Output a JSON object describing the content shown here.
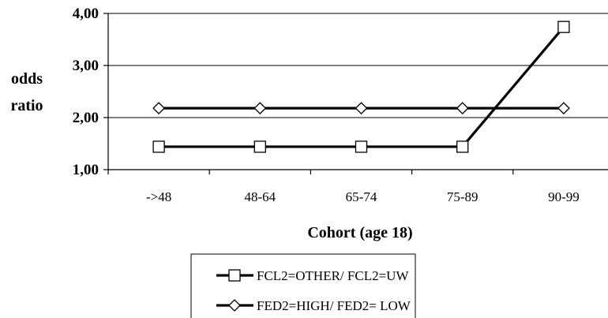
{
  "chart_data": {
    "type": "line",
    "title": "",
    "xlabel": "Cohort (age 18)",
    "ylabel": [
      "odds",
      "ratio"
    ],
    "categories": [
      "->48",
      "48-64",
      "65-74",
      "75-89",
      "90-99"
    ],
    "ylim": [
      1.0,
      4.0
    ],
    "yticks": [
      "1,00",
      "2,00",
      "3,00",
      "4,00"
    ],
    "ytick_values": [
      1.0,
      2.0,
      3.0,
      4.0
    ],
    "grid": true,
    "legend_position": "bottom",
    "series": [
      {
        "name": "FCL2=OTHER/ FCL2=UW",
        "marker": "square",
        "values": [
          1.44,
          1.44,
          1.44,
          1.44,
          3.74
        ]
      },
      {
        "name": "FED2=HIGH/ FED2= LOW",
        "marker": "diamond",
        "values": [
          2.18,
          2.18,
          2.18,
          2.18,
          2.18
        ]
      }
    ]
  }
}
